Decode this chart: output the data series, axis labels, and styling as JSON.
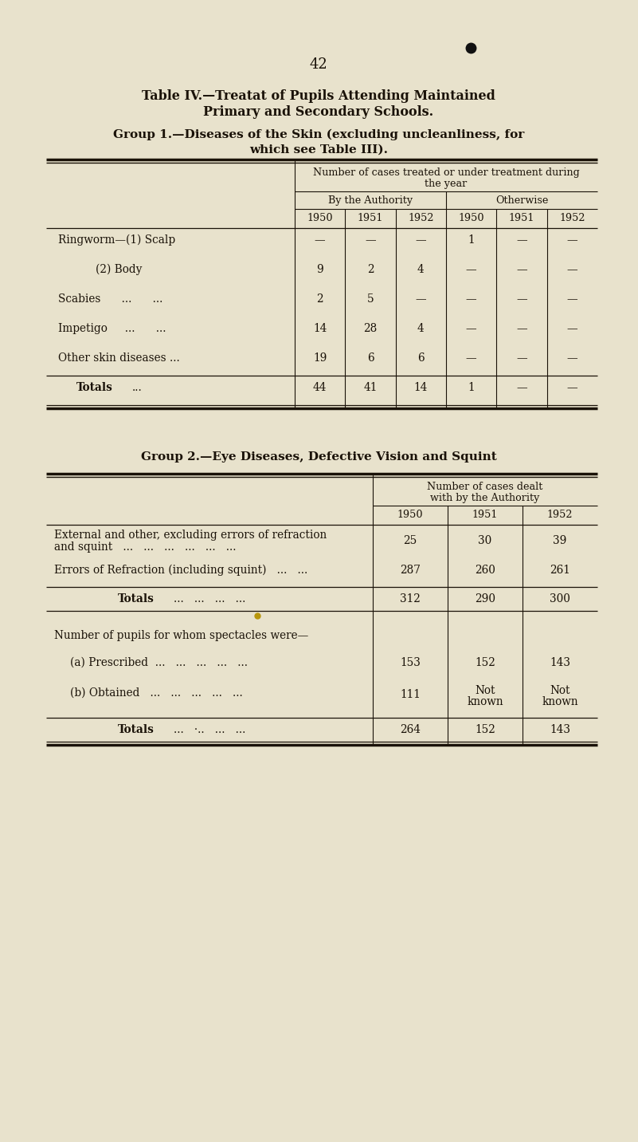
{
  "page_number": "42",
  "bg_color": "#e8e2cc",
  "title_line1": "Table IV.—Treata⁠⁠t of Pupils Attending Maintained",
  "title_line2": "Primary and Secondary Schools.",
  "group1_title": "Group 1.—Diseases of the Skin (excluding uncleanliness, for",
  "group1_title2": "which see Table III).",
  "group2_title": "Group 2.—Eye Diseases, Defective Vision and Squint",
  "years": [
    "1950",
    "1951",
    "1952"
  ],
  "group1_rows": [
    {
      "label": "Ringworm—(1) Scalp",
      "indent": false,
      "auth": [
        "—",
        "—",
        "—"
      ],
      "other": [
        "1",
        "—",
        "—"
      ]
    },
    {
      "label": "(2) Body",
      "indent": true,
      "auth": [
        "9",
        "2",
        "4"
      ],
      "other": [
        "—",
        "—",
        "—"
      ]
    },
    {
      "label": "Scabies      ...      ...",
      "indent": false,
      "auth": [
        "2",
        "5",
        "—"
      ],
      "other": [
        "—",
        "—",
        "—"
      ]
    },
    {
      "label": "Impetigo     ...      ...",
      "indent": false,
      "auth": [
        "14",
        "28",
        "4"
      ],
      "other": [
        "—",
        "—",
        "—"
      ]
    },
    {
      "label": "Other skin diseases ...",
      "indent": false,
      "auth": [
        "19",
        "6",
        "6"
      ],
      "other": [
        "—",
        "—",
        "—"
      ]
    }
  ],
  "group1_totals": {
    "auth": [
      "44",
      "41",
      "14"
    ],
    "other": [
      "1",
      "—",
      "—"
    ]
  },
  "group2_rows": [
    {
      "label1": "External and other, excluding errors of refraction",
      "label2": "and squint   ...   ...   ...   ...   ...   ...",
      "vals": [
        "25",
        "30",
        "39"
      ]
    },
    {
      "label1": "Errors of Refraction (including squint)   ...   ...",
      "label2": "",
      "vals": [
        "287",
        "260",
        "261"
      ]
    }
  ],
  "group2_totals": {
    "vals": [
      "312",
      "290",
      "300"
    ]
  },
  "group2_spectacles": [
    {
      "label": "(a) Prescribed  ...   ...   ...   ...   ...",
      "vals": [
        "153",
        "152",
        "143"
      ]
    },
    {
      "label": "(b) Obtained   ...   ...   ...   ...   ...",
      "vals": [
        "111",
        "Not\nknown",
        "Not\nknown"
      ]
    }
  ],
  "group2_spec_totals": {
    "vals": [
      "264",
      "152",
      "143"
    ]
  }
}
